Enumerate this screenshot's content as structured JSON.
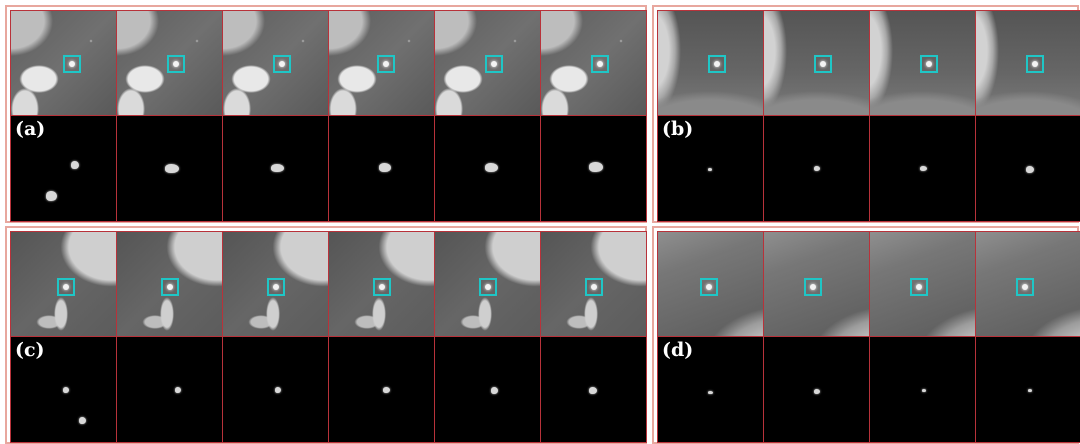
{
  "panels": [
    {
      "id": "a",
      "label": "(a)"
    },
    {
      "id": "b",
      "label": "(b)"
    },
    {
      "id": "c",
      "label": "(c)"
    },
    {
      "id": "d",
      "label": "(d)"
    }
  ],
  "colors": {
    "outer_border": "#e8a79e",
    "cell_border": "#b8323a",
    "nodule_box": "#1fc6c6",
    "label_text": "#ffffff"
  }
}
